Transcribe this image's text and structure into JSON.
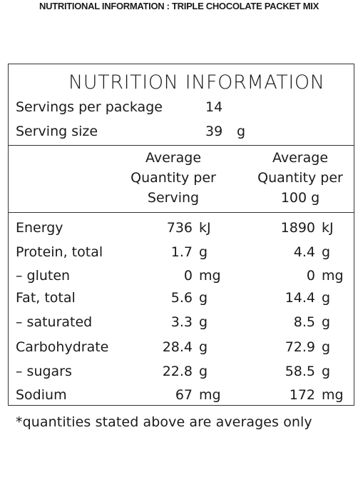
{
  "page_title": "NUTRITIONAL INFORMATION : TRIPLE CHOCOLATE PACKET MIX",
  "panel": {
    "heading": "NUTRITION INFORMATION",
    "servings_label": "Servings per package",
    "servings_value": "14",
    "serving_size_label": "Serving size",
    "serving_size_value": "39",
    "serving_size_unit": "g",
    "col_serving": [
      "Average",
      "Quantity per",
      "Serving"
    ],
    "col_100g": [
      "Average",
      "Quantity per",
      "100 g"
    ]
  },
  "rows": [
    {
      "label": "Energy",
      "serving": "736",
      "serving_unit": "kJ",
      "per100": "1890",
      "per100_unit": "kJ"
    },
    {
      "label": "Protein, total",
      "serving": "1.7",
      "serving_unit": "g",
      "per100": "4.4",
      "per100_unit": "g"
    },
    {
      "label": "– gluten",
      "serving": "0",
      "serving_unit": "mg",
      "per100": "0",
      "per100_unit": "mg"
    },
    {
      "label": "Fat, total",
      "serving": "5.6",
      "serving_unit": "g",
      "per100": "14.4",
      "per100_unit": "g"
    },
    {
      "label": "– saturated",
      "serving": "3.3",
      "serving_unit": "g",
      "per100": "8.5",
      "per100_unit": "g"
    },
    {
      "label": "Carbohydrate",
      "serving": "28.4",
      "serving_unit": "g",
      "per100": "72.9",
      "per100_unit": "g"
    },
    {
      "label": "– sugars",
      "serving": "22.8",
      "serving_unit": "g",
      "per100": "58.5",
      "per100_unit": "g"
    },
    {
      "label": "Sodium",
      "serving": "67",
      "serving_unit": "mg",
      "per100": "172",
      "per100_unit": "mg"
    }
  ],
  "footnote": "*quantities stated above are averages only"
}
